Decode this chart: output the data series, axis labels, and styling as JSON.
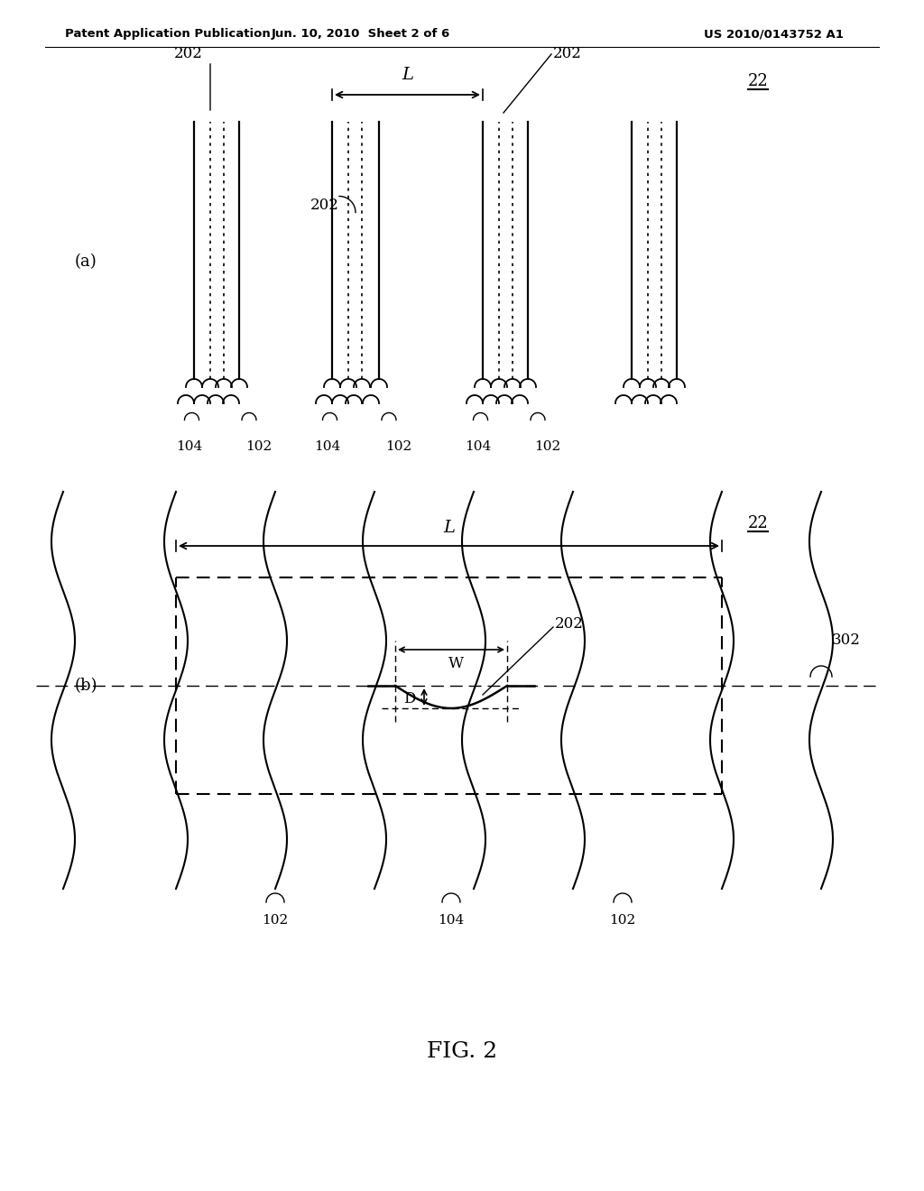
{
  "bg_color": "#ffffff",
  "header_left": "Patent Application Publication",
  "header_mid": "Jun. 10, 2010  Sheet 2 of 6",
  "header_right": "US 2010/0143752 A1",
  "fig_label": "FIG. 2"
}
